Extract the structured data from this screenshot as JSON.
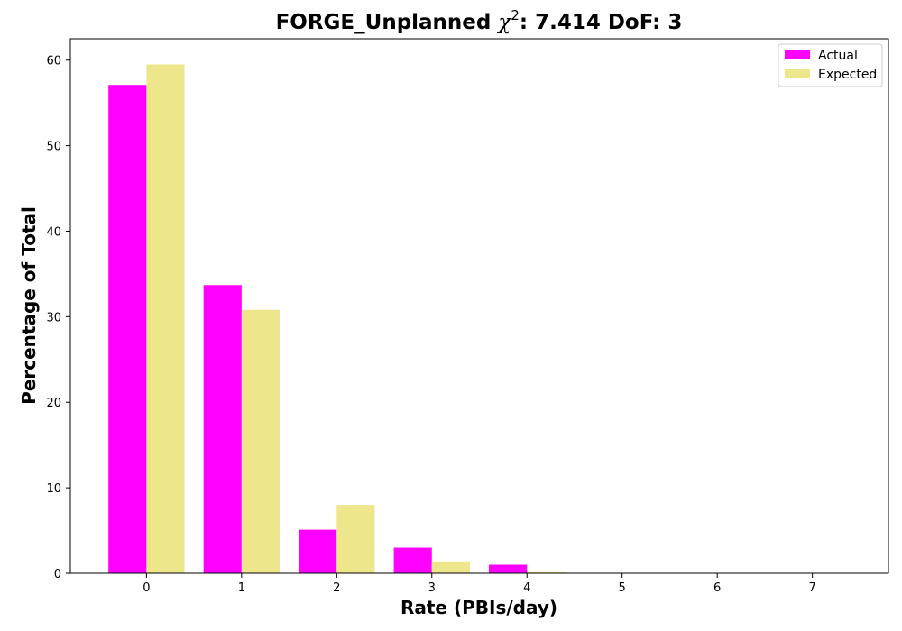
{
  "chart_data": {
    "type": "bar",
    "title_main": "FORGE_Unplanned ",
    "title_chi": "χ",
    "title_sup": "2",
    "title_rest": ": 7.414 DoF: 3",
    "xlabel": "Rate (PBIs/day)",
    "ylabel": "Percentage of Total",
    "categories": [
      "0",
      "1",
      "2",
      "3",
      "4",
      "5",
      "6",
      "7"
    ],
    "x": [
      0,
      1,
      2,
      3,
      4,
      5,
      6,
      7
    ],
    "xlim": [
      -0.8,
      7.8
    ],
    "ylim": [
      0,
      62.5
    ],
    "yticks": [
      0,
      10,
      20,
      30,
      40,
      50,
      60
    ],
    "series": [
      {
        "name": "Actual",
        "color": "#ff00ff",
        "values": [
          57.1,
          33.7,
          5.1,
          3.0,
          1.0,
          0,
          0,
          0
        ]
      },
      {
        "name": "Expected",
        "color": "#eee68b",
        "values": [
          59.5,
          30.8,
          8.0,
          1.4,
          0.2,
          0,
          0,
          0
        ]
      }
    ],
    "legend_position": "top-right",
    "grid": false
  }
}
